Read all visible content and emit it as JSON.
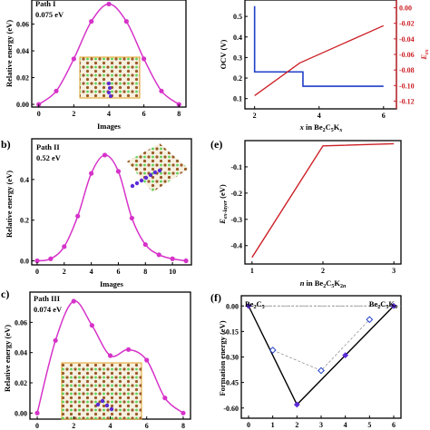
{
  "colors": {
    "magenta": "#d633c9",
    "blue": "#1f3fc8",
    "red": "#cc1f26",
    "purple": "#5b2bd6",
    "black": "#000000",
    "dash": "#888888"
  },
  "chart_data": [
    {
      "id": "a",
      "panel_label": "",
      "type": "line",
      "annotation": [
        "Path I",
        "0.075 eV"
      ],
      "xlabel": "Images",
      "ylabel": "Relative energy (eV)",
      "xlim": [
        -0.4,
        8.4
      ],
      "ylim": [
        -0.002,
        0.078
      ],
      "xticks": [
        0,
        2,
        4,
        6,
        8
      ],
      "yticks": [
        0.0,
        0.02,
        0.04,
        0.06
      ],
      "ytick_labels": [
        "0.00",
        "0.02",
        "0.04",
        "0.06"
      ],
      "x": [
        0,
        1,
        2,
        3,
        4,
        5,
        6,
        7,
        8
      ],
      "y": [
        0.0,
        0.01,
        0.034,
        0.062,
        0.075,
        0.062,
        0.034,
        0.01,
        0.0
      ]
    },
    {
      "id": "b",
      "panel_label": "b)",
      "type": "line",
      "annotation": [
        "Path II",
        "0.52 eV"
      ],
      "xlabel": "Images",
      "ylabel": "Relative energy (eV)",
      "xlim": [
        -0.4,
        11.4
      ],
      "ylim": [
        -0.02,
        0.6
      ],
      "xticks": [
        0,
        2,
        4,
        6,
        8,
        10
      ],
      "yticks": [
        0.0,
        0.2,
        0.4
      ],
      "ytick_labels": [
        "0.0",
        "0.2",
        "0.4"
      ],
      "x": [
        0,
        1,
        2,
        3,
        4,
        5,
        6,
        7,
        8,
        9,
        10,
        11
      ],
      "y": [
        0.0,
        0.01,
        0.07,
        0.22,
        0.43,
        0.52,
        0.44,
        0.21,
        0.08,
        0.03,
        0.01,
        0.0
      ]
    },
    {
      "id": "c",
      "panel_label": "c)",
      "type": "line",
      "annotation": [
        "Path III",
        "0.074 eV"
      ],
      "xlabel": "Images",
      "ylabel": "Relative energy (eV)",
      "xlim": [
        -0.4,
        8.4
      ],
      "ylim": [
        -0.004,
        0.08
      ],
      "xticks": [
        0,
        2,
        4,
        6,
        8
      ],
      "yticks": [
        0.0,
        0.02,
        0.04,
        0.06
      ],
      "ytick_labels": [
        "0.00",
        "0.02",
        "0.04",
        "0.06"
      ],
      "x": [
        0,
        1,
        2,
        3,
        4,
        5,
        6,
        7,
        8
      ],
      "y": [
        0.0,
        0.048,
        0.074,
        0.058,
        0.038,
        0.042,
        0.035,
        0.01,
        0.0
      ]
    },
    {
      "id": "d",
      "panel_label": "",
      "type": "line",
      "xlabel": "x in Be2C5Kx",
      "ylabel_left": "OCV (V)",
      "ylabel_right": "E_ex",
      "xlim": [
        1.7,
        6.4
      ],
      "ylim_left": [
        0.05,
        0.58
      ],
      "ylim_right": [
        -0.13,
        0.01
      ],
      "xticks": [
        2,
        4,
        6
      ],
      "yticks_left": [
        0.1,
        0.2,
        0.3,
        0.4,
        0.5
      ],
      "ytick_labels_left": [
        "0.1",
        "0.2",
        "0.3",
        "0.4",
        "0.5"
      ],
      "yticks_right": [
        -0.12,
        -0.1,
        -0.08,
        -0.06,
        -0.04,
        -0.02,
        0.0
      ],
      "ytick_labels_right": [
        "-0.12",
        "-0.10",
        "-0.08",
        "-0.06",
        "-0.04",
        "-0.02",
        "0.00"
      ],
      "series": [
        {
          "axis": "left",
          "color": "blue",
          "step": true,
          "x": [
            2.0,
            2.0,
            2.0,
            3.5,
            3.5,
            6.0
          ],
          "y": [
            0.55,
            0.55,
            0.23,
            0.23,
            0.16,
            0.16
          ]
        },
        {
          "axis": "right",
          "color": "red",
          "x": [
            2.0,
            3.4,
            6.0
          ],
          "y": [
            -0.113,
            -0.071,
            -0.023
          ]
        }
      ]
    },
    {
      "id": "e",
      "panel_label": "(e)",
      "type": "line",
      "xlabel": "n in Be2C5K2n",
      "ylabel": "E_ex-layer (eV)",
      "xlim": [
        0.9,
        3.1
      ],
      "ylim": [
        -0.47,
        0.0
      ],
      "xticks": [
        1,
        2,
        3
      ],
      "yticks": [
        -0.4,
        -0.3,
        -0.2,
        -0.1
      ],
      "ytick_labels": [
        "-0.4",
        "-0.3",
        "-0.2",
        "-0.1"
      ],
      "x": [
        1,
        2,
        3
      ],
      "y": [
        -0.445,
        -0.02,
        -0.012
      ]
    },
    {
      "id": "f",
      "panel_label": "(f)",
      "type": "scatter",
      "xlabel": "x",
      "ylabel": "Formation energy (eV)",
      "label_left": "Be2C5",
      "label_right": "Be2C5K6",
      "xlim": [
        -0.3,
        6.3
      ],
      "ylim": [
        -0.66,
        0.06
      ],
      "xticks": [
        0,
        1,
        2,
        3,
        4,
        5,
        6
      ],
      "yticks": [
        0.0,
        -0.15,
        -0.3,
        -0.45,
        -0.6
      ],
      "ytick_labels": [
        "0.00",
        "-0.15",
        "-0.30",
        "-0.45",
        "-0.60"
      ],
      "hull_x": [
        0,
        2,
        4,
        6
      ],
      "hull_y": [
        0.0,
        -0.58,
        -0.29,
        0.0
      ],
      "open_x": [
        1,
        3,
        5
      ],
      "open_y": [
        -0.26,
        -0.38,
        -0.08
      ]
    }
  ]
}
